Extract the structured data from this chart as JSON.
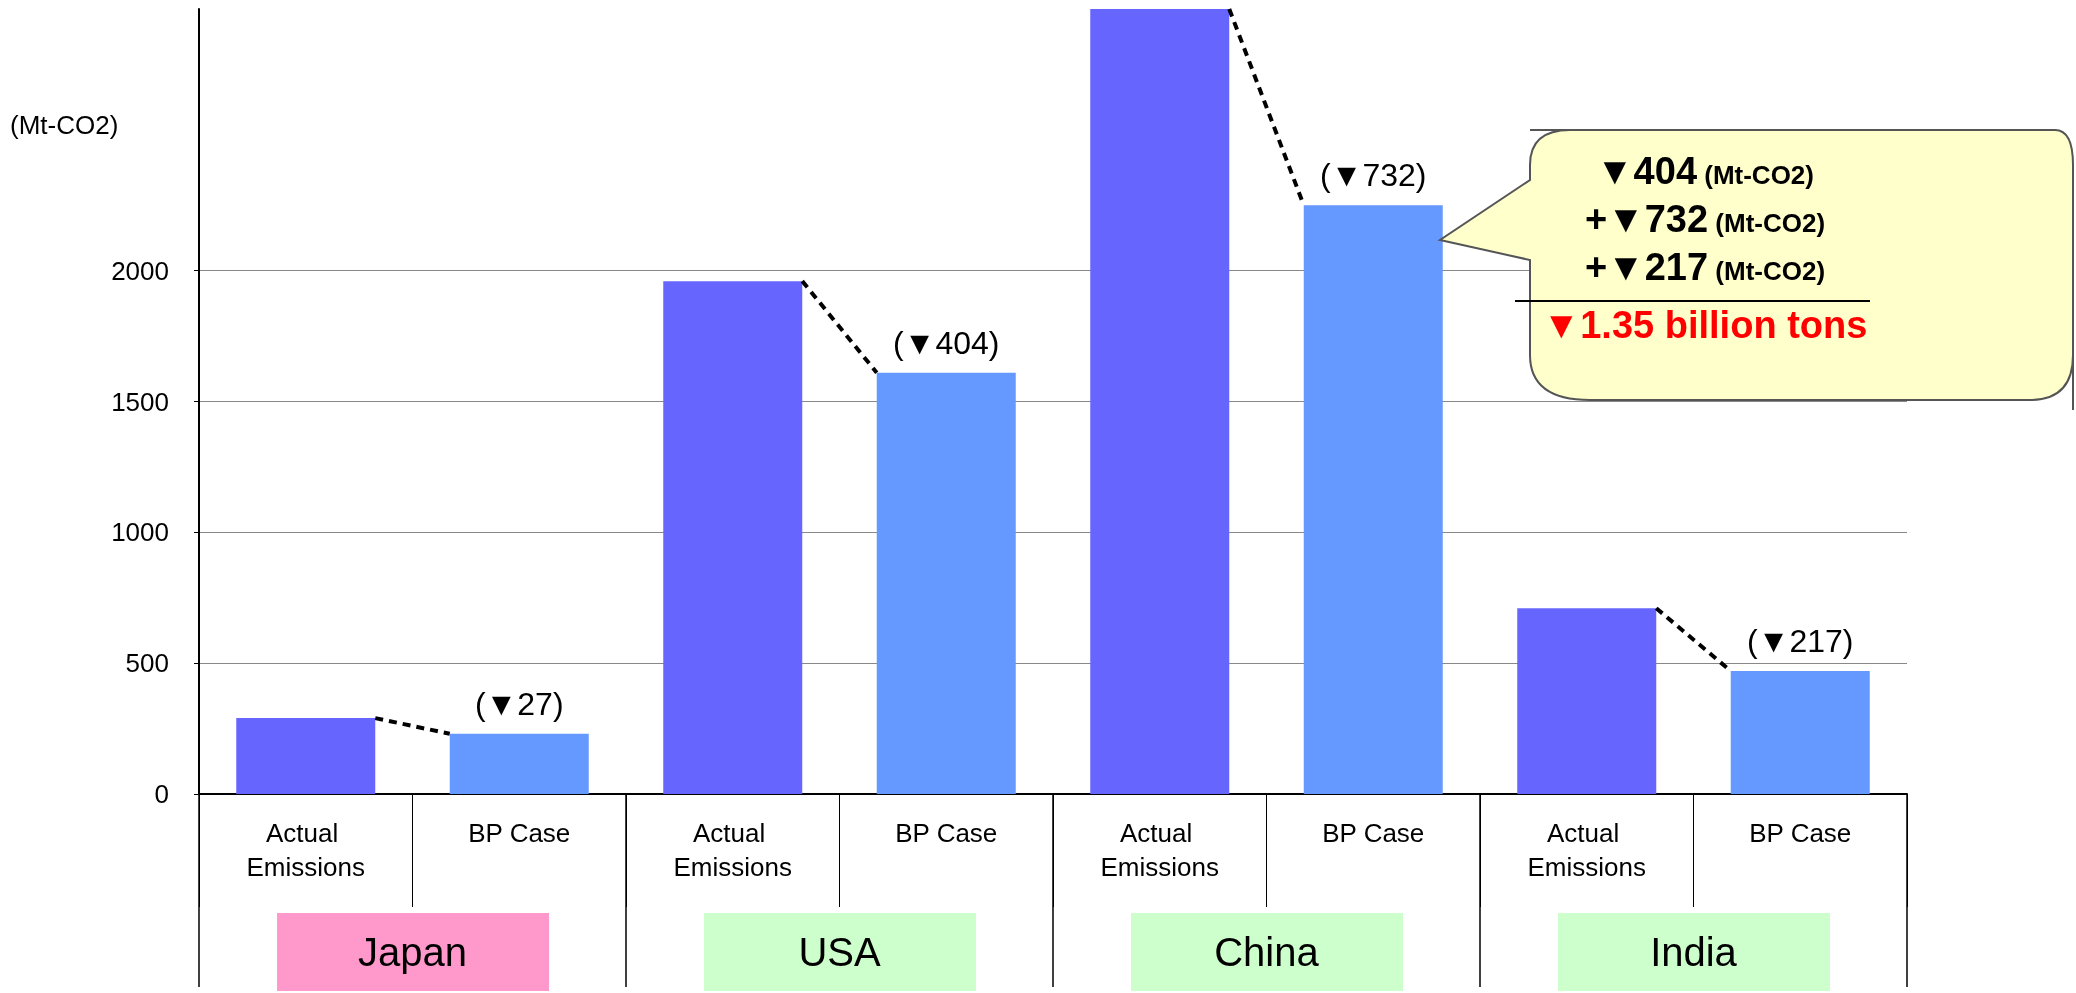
{
  "chart_data": {
    "type": "bar",
    "ylabel": "(Mt-CO2)",
    "categories": [
      "Actual Emissions",
      "BP Case",
      "Actual Emissions",
      "BP Case",
      "Actual Emissions",
      "BP Case",
      "Actual Emissions",
      "BP Case"
    ],
    "values": [
      290,
      230,
      1960,
      1610,
      3000,
      2250,
      710,
      470
    ],
    "colors": [
      "#6666ff",
      "#6699ff",
      "#6666ff",
      "#6699ff",
      "#6666ff",
      "#6699ff",
      "#6666ff",
      "#6699ff"
    ],
    "ylim": [
      0,
      3000
    ],
    "yticks": [
      0,
      500,
      1000,
      1500,
      2000
    ],
    "grid": "y",
    "annotations": [
      "Japan",
      "USA",
      "China",
      "India",
      {
        "text": "(▼27)",
        "y": 230
      },
      {
        "text": "(▼404)",
        "y": 1610
      },
      {
        "text": "(▼732)",
        "y": 2250
      },
      {
        "text": "(▼217)",
        "y": 470
      },
      "▼404 (Mt-CO2)",
      "+▼732 (Mt-CO2)",
      "+▼217 (Mt-CO2)",
      "▼1.35 billion tons"
    ]
  }
}
